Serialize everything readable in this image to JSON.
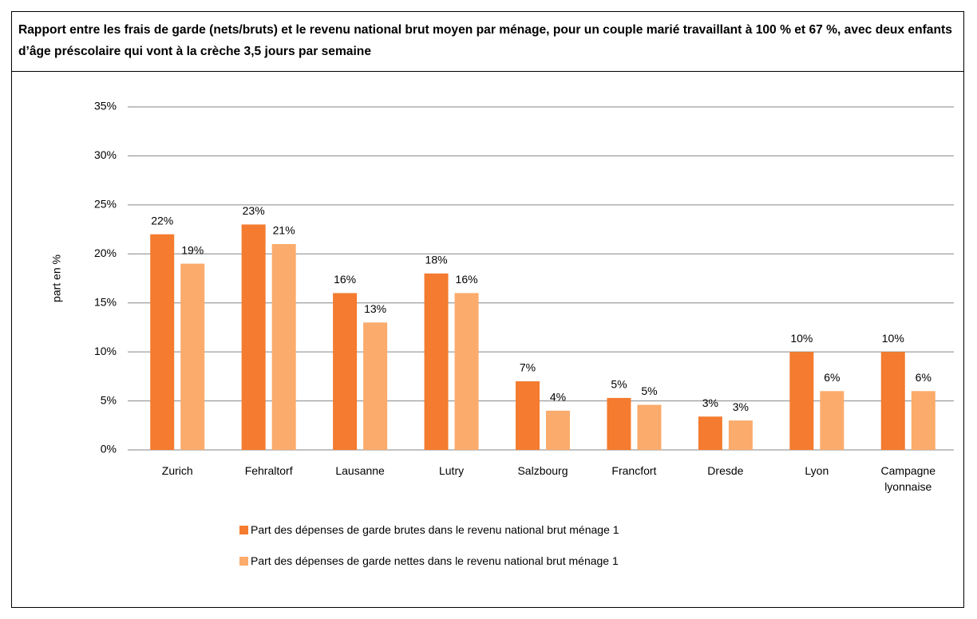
{
  "chart_data": {
    "type": "bar",
    "title": "Rapport entre les frais de garde (nets/bruts) et le revenu national brut moyen par ménage, pour un couple marié travaillant à 100 % et 67 %, avec deux enfants d’âge préscolaire qui vont à la crèche 3,5 jours par semaine",
    "y_label": "part en %",
    "categories": [
      "Zurich",
      "Fehraltorf",
      "Lausanne",
      "Lutry",
      "Salzbourg",
      "Francfort",
      "Dresde",
      "Lyon",
      "Campagne lyonnaise"
    ],
    "series": [
      {
        "name": "Part des dépenses de garde brutes dans le revenu national brut ménage 1",
        "color": "#f47b2f",
        "values": [
          22,
          23,
          16,
          18,
          7,
          5.3,
          3.4,
          10,
          10
        ],
        "value_labels": [
          "22%",
          "23%",
          "16%",
          "18%",
          "7%",
          "5%",
          "3%",
          "10%",
          "10%"
        ]
      },
      {
        "name": "Part des dépenses de garde nettes dans le revenu national brut ménage 1",
        "color": "#fbab6b",
        "values": [
          19,
          21,
          13,
          16,
          4,
          4.6,
          3.0,
          6,
          6
        ],
        "value_labels": [
          "19%",
          "21%",
          "13%",
          "16%",
          "4%",
          "5%",
          "3%",
          "6%",
          "6%"
        ]
      }
    ],
    "ylim": [
      0,
      35
    ],
    "yticks": [
      {
        "value": 0,
        "label": "0%"
      },
      {
        "value": 5,
        "label": "5%"
      },
      {
        "value": 10,
        "label": "10%"
      },
      {
        "value": 15,
        "label": "15%"
      },
      {
        "value": 20,
        "label": "20%"
      },
      {
        "value": 25,
        "label": "25%"
      },
      {
        "value": 30,
        "label": "30%"
      },
      {
        "value": 35,
        "label": "35%"
      }
    ],
    "grid": true,
    "legend": "bottom"
  }
}
